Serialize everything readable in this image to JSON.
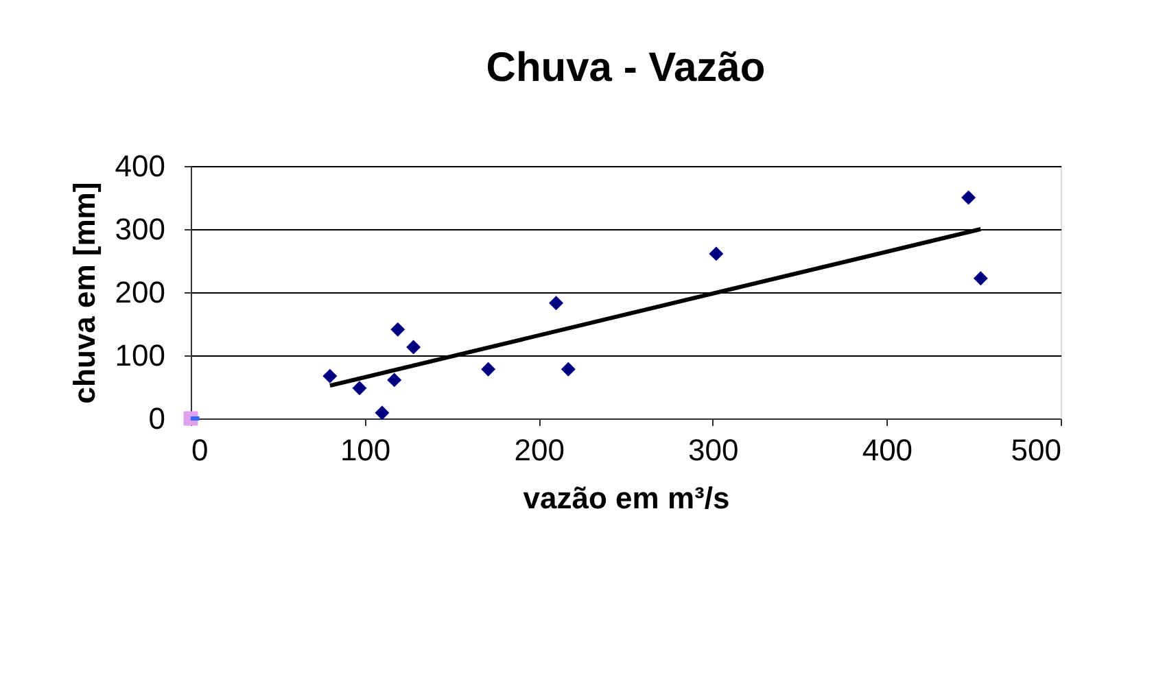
{
  "chart_data": {
    "type": "scatter",
    "title": "Chuva - Vazão",
    "xlabel": "vazão em m³/s",
    "ylabel": "chuva em [mm]",
    "xlim": [
      0,
      500
    ],
    "xticks": [
      0,
      100,
      200,
      300,
      400,
      500
    ],
    "ylim": [
      0,
      400
    ],
    "yticks": [
      0,
      100,
      200,
      300,
      400
    ],
    "grid": "y",
    "series": [
      {
        "marker": "diamond",
        "color": "#000080",
        "x": [
          80,
          97,
          117,
          119,
          128,
          110,
          171,
          210,
          217,
          302,
          447,
          454
        ],
        "values": [
          67,
          48,
          61,
          141,
          113,
          9,
          78,
          183,
          78,
          261,
          350,
          222
        ]
      },
      {
        "type": "line",
        "marker": "none",
        "color": "#000000",
        "x": [
          80,
          454
        ],
        "values": [
          52,
          300
        ]
      },
      {
        "type": "scatter",
        "marker": "square",
        "color": "#e0a0f0",
        "x": [
          0
        ],
        "values": [
          0
        ]
      },
      {
        "type": "line",
        "marker": "none",
        "color": "#3366ff",
        "x": [
          0,
          5
        ],
        "values": [
          0,
          0
        ]
      }
    ]
  }
}
